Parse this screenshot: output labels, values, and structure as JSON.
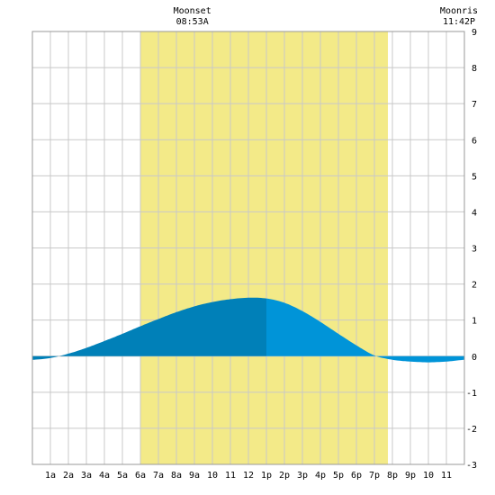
{
  "chart_data": {
    "type": "area",
    "title": "",
    "xlabel": "",
    "ylabel": "",
    "x_unit": "hour of day",
    "xlim": [
      0,
      24
    ],
    "ylim": [
      -3,
      9
    ],
    "y_ticks": [
      -3,
      -2,
      -1,
      0,
      1,
      2,
      3,
      4,
      5,
      6,
      7,
      8,
      9
    ],
    "x_ticks": [
      {
        "hour": 1,
        "label": "1a"
      },
      {
        "hour": 2,
        "label": "2a"
      },
      {
        "hour": 3,
        "label": "3a"
      },
      {
        "hour": 4,
        "label": "4a"
      },
      {
        "hour": 5,
        "label": "5a"
      },
      {
        "hour": 6,
        "label": "6a"
      },
      {
        "hour": 7,
        "label": "7a"
      },
      {
        "hour": 8,
        "label": "8a"
      },
      {
        "hour": 9,
        "label": "9a"
      },
      {
        "hour": 10,
        "label": "10"
      },
      {
        "hour": 11,
        "label": "11"
      },
      {
        "hour": 12,
        "label": "12"
      },
      {
        "hour": 13,
        "label": "1p"
      },
      {
        "hour": 14,
        "label": "2p"
      },
      {
        "hour": 15,
        "label": "3p"
      },
      {
        "hour": 16,
        "label": "4p"
      },
      {
        "hour": 17,
        "label": "5p"
      },
      {
        "hour": 18,
        "label": "6p"
      },
      {
        "hour": 19,
        "label": "7p"
      },
      {
        "hour": 20,
        "label": "8p"
      },
      {
        "hour": 21,
        "label": "9p"
      },
      {
        "hour": 22,
        "label": "10"
      },
      {
        "hour": 23,
        "label": "11"
      }
    ],
    "grid": true,
    "daylight": {
      "start_hour": 6.0,
      "end_hour": 19.75,
      "color": "#f3ea88"
    },
    "moon_events": [
      {
        "label": "Moonset",
        "time": "08:53A",
        "hour": 8.883
      },
      {
        "label": "Moonris",
        "time": "11:42P",
        "hour": 23.7
      }
    ],
    "tide_split_hour": 13.0,
    "colors": {
      "rising": "#0080b8",
      "falling": "#0094d8",
      "grid": "#c8c8c8",
      "background": "#ffffff"
    },
    "series": [
      {
        "x": [
          0,
          1,
          2,
          3,
          4,
          5,
          6,
          7,
          8,
          9,
          10,
          11,
          12,
          13,
          14,
          15,
          16,
          17,
          18,
          19,
          20,
          21,
          22,
          23,
          24
        ],
        "values": [
          -0.1,
          -0.05,
          0.07,
          0.23,
          0.42,
          0.62,
          0.83,
          1.03,
          1.22,
          1.38,
          1.5,
          1.58,
          1.62,
          1.6,
          1.48,
          1.25,
          0.95,
          0.62,
          0.3,
          0.02,
          -0.1,
          -0.15,
          -0.17,
          -0.15,
          -0.1
        ]
      }
    ]
  }
}
